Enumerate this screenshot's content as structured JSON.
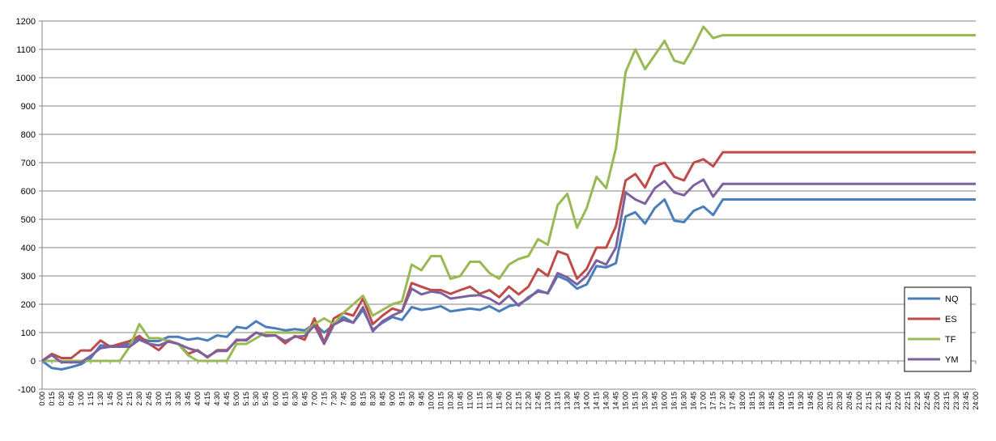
{
  "chart_data": {
    "type": "line",
    "title": "",
    "xlabel": "",
    "ylabel": "",
    "ylim": [
      -100,
      1200
    ],
    "y_ticks": [
      -100,
      0,
      100,
      200,
      300,
      400,
      500,
      600,
      700,
      800,
      900,
      1000,
      1100,
      1200
    ],
    "grid": "horizontal",
    "legend_position": "right",
    "x_labels": [
      "0:00",
      "0:15",
      "0:30",
      "0:45",
      "1:00",
      "1:15",
      "1:30",
      "1:45",
      "2:00",
      "2:15",
      "2:30",
      "2:45",
      "3:00",
      "3:15",
      "3:30",
      "3:45",
      "4:00",
      "4:15",
      "4:30",
      "4:45",
      "5:00",
      "5:15",
      "5:30",
      "5:45",
      "6:00",
      "6:15",
      "6:30",
      "6:45",
      "7:00",
      "7:15",
      "7:30",
      "7:45",
      "8:00",
      "8:15",
      "8:30",
      "8:45",
      "9:00",
      "9:15",
      "9:30",
      "9:45",
      "10:00",
      "10:15",
      "10:30",
      "10:45",
      "11:00",
      "11:15",
      "11:30",
      "11:45",
      "12:00",
      "12:15",
      "12:30",
      "12:45",
      "13:00",
      "13:15",
      "13:30",
      "13:45",
      "14:00",
      "14:15",
      "14:30",
      "14:45",
      "15:00",
      "15:15",
      "15:30",
      "15:45",
      "16:00",
      "16:15",
      "16:30",
      "16:45",
      "17:00",
      "17:15",
      "17:30",
      "17:45",
      "18:00",
      "18:15",
      "18:30",
      "18:45",
      "19:00",
      "19:15",
      "19:30",
      "19:45",
      "20:00",
      "20:15",
      "20:30",
      "20:45",
      "21:00",
      "21:15",
      "21:30",
      "21:45",
      "22:00",
      "22:15",
      "22:30",
      "22:45",
      "23:00",
      "23:15",
      "23:30",
      "23:45",
      "24:00"
    ],
    "series": [
      {
        "name": "NQ",
        "color": "#4A7EBB",
        "points": [
          [
            0,
            0
          ],
          [
            0.15,
            -25
          ],
          [
            0.3,
            -30
          ],
          [
            0.45,
            -22
          ],
          [
            1.0,
            -12
          ],
          [
            1.15,
            10
          ],
          [
            1.3,
            55
          ],
          [
            1.45,
            52
          ],
          [
            2.0,
            55
          ],
          [
            2.15,
            60
          ],
          [
            2.3,
            80
          ],
          [
            2.45,
            70
          ],
          [
            3.0,
            70
          ],
          [
            3.15,
            85
          ],
          [
            3.3,
            85
          ],
          [
            3.45,
            75
          ],
          [
            4.0,
            80
          ],
          [
            4.15,
            72
          ],
          [
            4.3,
            90
          ],
          [
            4.45,
            85
          ],
          [
            5.0,
            120
          ],
          [
            5.15,
            115
          ],
          [
            5.3,
            140
          ],
          [
            5.45,
            120
          ],
          [
            6.0,
            115
          ],
          [
            6.15,
            108
          ],
          [
            6.3,
            112
          ],
          [
            6.45,
            108
          ],
          [
            7.0,
            130
          ],
          [
            7.15,
            100
          ],
          [
            7.3,
            128
          ],
          [
            7.45,
            155
          ],
          [
            8.0,
            135
          ],
          [
            8.15,
            180
          ],
          [
            8.3,
            110
          ],
          [
            8.45,
            135
          ],
          [
            9.0,
            155
          ],
          [
            9.15,
            145
          ],
          [
            9.3,
            190
          ],
          [
            9.45,
            180
          ],
          [
            10.0,
            185
          ],
          [
            10.15,
            193
          ],
          [
            10.3,
            175
          ],
          [
            10.45,
            180
          ],
          [
            11.0,
            185
          ],
          [
            11.15,
            180
          ],
          [
            11.3,
            193
          ],
          [
            11.45,
            175
          ],
          [
            12.0,
            193
          ],
          [
            12.15,
            200
          ],
          [
            12.3,
            220
          ],
          [
            12.45,
            250
          ],
          [
            13.0,
            238
          ],
          [
            13.15,
            300
          ],
          [
            13.3,
            285
          ],
          [
            13.45,
            255
          ],
          [
            14.0,
            270
          ],
          [
            14.15,
            335
          ],
          [
            14.3,
            330
          ],
          [
            14.45,
            345
          ],
          [
            15.0,
            510
          ],
          [
            15.15,
            525
          ],
          [
            15.3,
            485
          ],
          [
            15.45,
            540
          ],
          [
            16.0,
            570
          ],
          [
            16.15,
            495
          ],
          [
            16.3,
            490
          ],
          [
            16.45,
            530
          ],
          [
            17.0,
            545
          ],
          [
            17.15,
            515
          ],
          [
            17.3,
            570
          ],
          [
            24.0,
            570
          ]
        ]
      },
      {
        "name": "ES",
        "color": "#BE4B48",
        "points": [
          [
            0,
            0
          ],
          [
            0.15,
            25
          ],
          [
            0.3,
            10
          ],
          [
            0.45,
            10
          ],
          [
            1.0,
            37
          ],
          [
            1.15,
            37
          ],
          [
            1.3,
            72
          ],
          [
            1.45,
            50
          ],
          [
            2.0,
            60
          ],
          [
            2.15,
            70
          ],
          [
            2.3,
            88
          ],
          [
            2.45,
            60
          ],
          [
            3.0,
            38
          ],
          [
            3.15,
            72
          ],
          [
            3.3,
            60
          ],
          [
            3.45,
            25
          ],
          [
            4.0,
            38
          ],
          [
            4.15,
            12
          ],
          [
            4.3,
            38
          ],
          [
            4.45,
            38
          ],
          [
            5.0,
            72
          ],
          [
            5.15,
            75
          ],
          [
            5.3,
            100
          ],
          [
            5.45,
            90
          ],
          [
            6.0,
            90
          ],
          [
            6.15,
            62
          ],
          [
            6.3,
            88
          ],
          [
            6.45,
            75
          ],
          [
            7.0,
            150
          ],
          [
            7.15,
            65
          ],
          [
            7.3,
            150
          ],
          [
            7.45,
            170
          ],
          [
            8.0,
            160
          ],
          [
            8.15,
            220
          ],
          [
            8.3,
            130
          ],
          [
            8.45,
            160
          ],
          [
            9.0,
            185
          ],
          [
            9.15,
            175
          ],
          [
            9.3,
            275
          ],
          [
            9.45,
            262
          ],
          [
            10.0,
            250
          ],
          [
            10.15,
            250
          ],
          [
            10.3,
            237
          ],
          [
            10.45,
            250
          ],
          [
            11.0,
            262
          ],
          [
            11.15,
            237
          ],
          [
            11.3,
            250
          ],
          [
            11.45,
            225
          ],
          [
            12.0,
            262
          ],
          [
            12.15,
            235
          ],
          [
            12.3,
            262
          ],
          [
            12.45,
            325
          ],
          [
            13.0,
            300
          ],
          [
            13.15,
            387
          ],
          [
            13.3,
            375
          ],
          [
            13.45,
            290
          ],
          [
            14.0,
            325
          ],
          [
            14.15,
            400
          ],
          [
            14.3,
            400
          ],
          [
            14.45,
            475
          ],
          [
            15.0,
            637
          ],
          [
            15.15,
            660
          ],
          [
            15.3,
            612
          ],
          [
            15.45,
            687
          ],
          [
            16.0,
            700
          ],
          [
            16.15,
            650
          ],
          [
            16.3,
            637
          ],
          [
            16.45,
            700
          ],
          [
            17.0,
            712
          ],
          [
            17.15,
            687
          ],
          [
            17.3,
            737
          ],
          [
            24.0,
            737
          ]
        ]
      },
      {
        "name": "TF",
        "color": "#98B954",
        "points": [
          [
            0,
            0
          ],
          [
            0.15,
            0
          ],
          [
            0.3,
            0
          ],
          [
            0.45,
            0
          ],
          [
            1.0,
            0
          ],
          [
            1.15,
            0
          ],
          [
            1.3,
            0
          ],
          [
            1.45,
            0
          ],
          [
            2.0,
            0
          ],
          [
            2.15,
            50
          ],
          [
            2.3,
            130
          ],
          [
            2.45,
            80
          ],
          [
            3.0,
            80
          ],
          [
            3.15,
            70
          ],
          [
            3.3,
            60
          ],
          [
            3.45,
            20
          ],
          [
            4.0,
            0
          ],
          [
            4.15,
            0
          ],
          [
            4.3,
            0
          ],
          [
            4.45,
            0
          ],
          [
            5.0,
            60
          ],
          [
            5.15,
            60
          ],
          [
            5.3,
            80
          ],
          [
            5.45,
            100
          ],
          [
            6.0,
            100
          ],
          [
            6.15,
            100
          ],
          [
            6.3,
            100
          ],
          [
            6.45,
            100
          ],
          [
            7.0,
            130
          ],
          [
            7.15,
            150
          ],
          [
            7.3,
            130
          ],
          [
            7.45,
            170
          ],
          [
            8.0,
            200
          ],
          [
            8.15,
            230
          ],
          [
            8.3,
            160
          ],
          [
            8.45,
            180
          ],
          [
            9.0,
            200
          ],
          [
            9.15,
            210
          ],
          [
            9.3,
            340
          ],
          [
            9.45,
            320
          ],
          [
            10.0,
            370
          ],
          [
            10.15,
            370
          ],
          [
            10.3,
            290
          ],
          [
            10.45,
            300
          ],
          [
            11.0,
            350
          ],
          [
            11.15,
            350
          ],
          [
            11.3,
            310
          ],
          [
            11.45,
            290
          ],
          [
            12.0,
            340
          ],
          [
            12.15,
            360
          ],
          [
            12.3,
            370
          ],
          [
            12.45,
            430
          ],
          [
            13.0,
            410
          ],
          [
            13.15,
            550
          ],
          [
            13.3,
            590
          ],
          [
            13.45,
            470
          ],
          [
            14.0,
            540
          ],
          [
            14.15,
            650
          ],
          [
            14.3,
            610
          ],
          [
            14.45,
            750
          ],
          [
            15.0,
            1020
          ],
          [
            15.15,
            1100
          ],
          [
            15.3,
            1030
          ],
          [
            15.45,
            1080
          ],
          [
            16.0,
            1130
          ],
          [
            16.15,
            1060
          ],
          [
            16.3,
            1050
          ],
          [
            16.45,
            1110
          ],
          [
            17.0,
            1180
          ],
          [
            17.15,
            1140
          ],
          [
            17.3,
            1150
          ],
          [
            24.0,
            1150
          ]
        ]
      },
      {
        "name": "YM",
        "color": "#7D60A0",
        "points": [
          [
            0,
            0
          ],
          [
            0.15,
            20
          ],
          [
            0.3,
            -5
          ],
          [
            0.45,
            -5
          ],
          [
            1.0,
            -5
          ],
          [
            1.15,
            18
          ],
          [
            1.3,
            45
          ],
          [
            1.45,
            50
          ],
          [
            2.0,
            50
          ],
          [
            2.15,
            50
          ],
          [
            2.3,
            75
          ],
          [
            2.45,
            60
          ],
          [
            3.0,
            55
          ],
          [
            3.15,
            68
          ],
          [
            3.3,
            60
          ],
          [
            3.45,
            45
          ],
          [
            4.0,
            35
          ],
          [
            4.15,
            15
          ],
          [
            4.3,
            35
          ],
          [
            4.45,
            35
          ],
          [
            5.0,
            75
          ],
          [
            5.15,
            72
          ],
          [
            5.3,
            100
          ],
          [
            5.45,
            88
          ],
          [
            6.0,
            90
          ],
          [
            6.15,
            70
          ],
          [
            6.3,
            85
          ],
          [
            6.45,
            88
          ],
          [
            7.0,
            125
          ],
          [
            7.15,
            60
          ],
          [
            7.3,
            128
          ],
          [
            7.45,
            145
          ],
          [
            8.0,
            135
          ],
          [
            8.15,
            190
          ],
          [
            8.3,
            105
          ],
          [
            8.45,
            140
          ],
          [
            9.0,
            160
          ],
          [
            9.15,
            175
          ],
          [
            9.3,
            255
          ],
          [
            9.45,
            235
          ],
          [
            10.0,
            245
          ],
          [
            10.15,
            240
          ],
          [
            10.3,
            220
          ],
          [
            10.45,
            225
          ],
          [
            11.0,
            230
          ],
          [
            11.15,
            232
          ],
          [
            11.3,
            220
          ],
          [
            11.45,
            200
          ],
          [
            12.0,
            230
          ],
          [
            12.15,
            195
          ],
          [
            12.3,
            225
          ],
          [
            12.45,
            245
          ],
          [
            13.0,
            240
          ],
          [
            13.15,
            310
          ],
          [
            13.3,
            295
          ],
          [
            13.45,
            270
          ],
          [
            14.0,
            300
          ],
          [
            14.15,
            355
          ],
          [
            14.3,
            340
          ],
          [
            14.45,
            400
          ],
          [
            15.0,
            595
          ],
          [
            15.15,
            570
          ],
          [
            15.3,
            555
          ],
          [
            15.45,
            610
          ],
          [
            16.0,
            635
          ],
          [
            16.15,
            595
          ],
          [
            16.3,
            585
          ],
          [
            16.45,
            620
          ],
          [
            17.0,
            640
          ],
          [
            17.15,
            580
          ],
          [
            17.3,
            625
          ],
          [
            24.0,
            625
          ]
        ]
      }
    ]
  }
}
